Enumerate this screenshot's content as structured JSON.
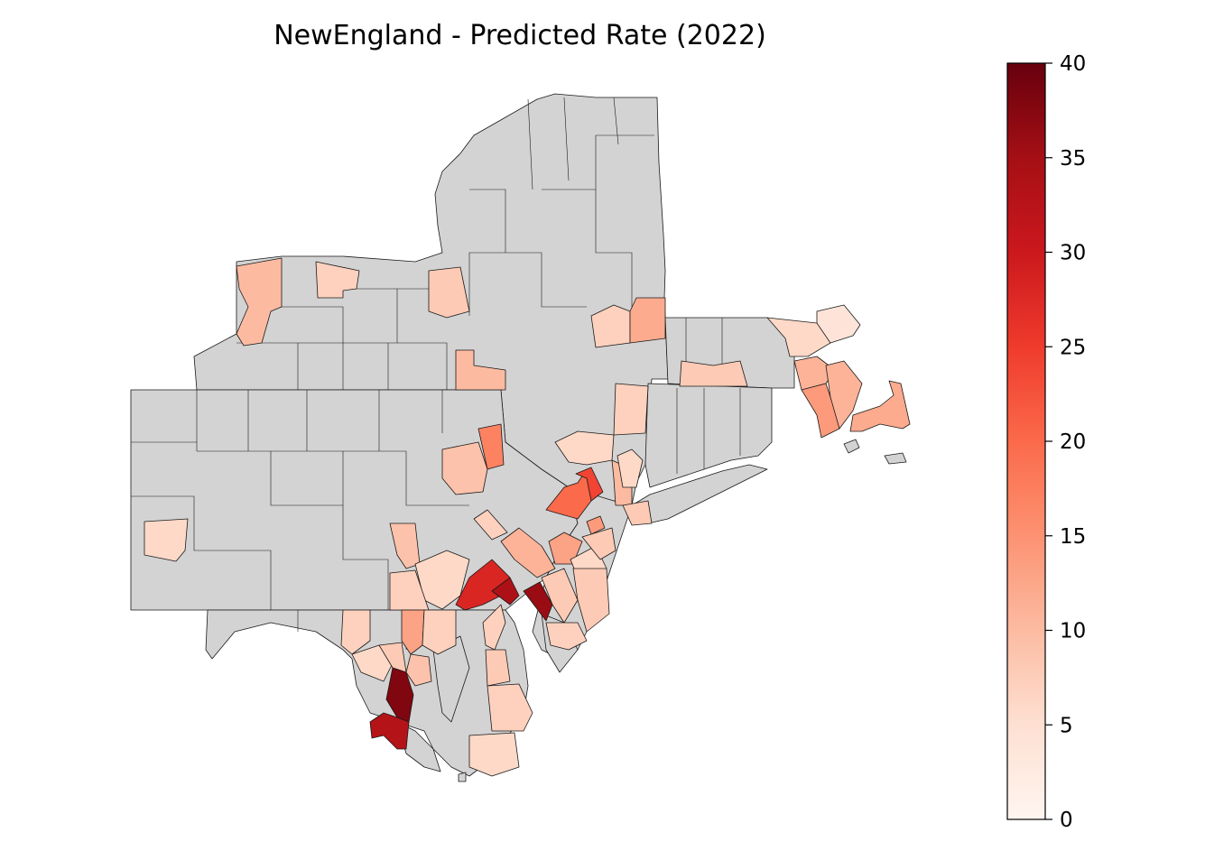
{
  "title": "NewEngland - Predicted Rate (2022)",
  "colors": {
    "no_data": "#d3d3d3",
    "scale": [
      "#fff5f0",
      "#fee0d2",
      "#fcbba1",
      "#fc9272",
      "#fb6a4a",
      "#ef3b2c",
      "#cb181d",
      "#a50f15",
      "#67000d"
    ]
  },
  "colorbar": {
    "min": 0,
    "max": 40,
    "ticks": [
      "0",
      "5",
      "10",
      "15",
      "20",
      "25",
      "30",
      "35",
      "40"
    ]
  },
  "regions_rendered": [
    {
      "id": "ny-erie",
      "value": 10
    },
    {
      "id": "ny-monroe",
      "value": 7
    },
    {
      "id": "ny-onondaga",
      "value": 8
    },
    {
      "id": "ny-broome",
      "value": 10
    },
    {
      "id": "ny-schenectady",
      "value": 7
    },
    {
      "id": "ny-rensselaer",
      "value": 12
    },
    {
      "id": "ny-dutchess",
      "value": 7
    },
    {
      "id": "ma-north",
      "value": 4
    },
    {
      "id": "ma-essex",
      "value": 6
    },
    {
      "id": "ma-worcester",
      "value": 8
    },
    {
      "id": "ma-middlesex",
      "value": 11
    },
    {
      "id": "ma-norfolk",
      "value": 14
    },
    {
      "id": "ma-plymouth",
      "value": 11
    },
    {
      "id": "ma-barnstable",
      "value": 12
    },
    {
      "id": "pa-lackawanna",
      "value": 17
    },
    {
      "id": "pa-luzerne",
      "value": 9
    },
    {
      "id": "pa-monroe",
      "value": 6
    },
    {
      "id": "nj-passaic",
      "value": 20
    },
    {
      "id": "nj-bergen",
      "value": 24
    },
    {
      "id": "nj-essex",
      "value": 10
    },
    {
      "id": "nj-union",
      "value": 14
    },
    {
      "id": "ny-westchester",
      "value": 6
    },
    {
      "id": "ny-queens",
      "value": 8
    },
    {
      "id": "pa-cambria",
      "value": 6
    },
    {
      "id": "pa-berks",
      "value": 11
    },
    {
      "id": "pa-lehigh",
      "value": 7
    },
    {
      "id": "pa-bucks",
      "value": 13
    },
    {
      "id": "nj-mercer",
      "value": 6
    },
    {
      "id": "nj-monmouth",
      "value": 8
    },
    {
      "id": "pa-dauphin",
      "value": 9
    },
    {
      "id": "pa-lancaster",
      "value": 6
    },
    {
      "id": "pa-chester",
      "value": 28
    },
    {
      "id": "pa-delaware",
      "value": 34
    },
    {
      "id": "nj-camden",
      "value": 36
    },
    {
      "id": "nj-burlington",
      "value": 8
    },
    {
      "id": "nj-ocean",
      "value": 8
    },
    {
      "id": "nj-atlantic",
      "value": 7
    },
    {
      "id": "pa-york",
      "value": 7
    },
    {
      "id": "md-baltimore",
      "value": 13
    },
    {
      "id": "md-harford",
      "value": 7
    },
    {
      "id": "md-frederick",
      "value": 7
    },
    {
      "id": "md-montgomery",
      "value": 6
    },
    {
      "id": "md-howard",
      "value": 9
    },
    {
      "id": "md-anne-arundel",
      "value": 8
    },
    {
      "id": "de-new-castle",
      "value": 7
    },
    {
      "id": "de-kent",
      "value": 8
    },
    {
      "id": "de-sussex",
      "value": 7
    },
    {
      "id": "md-worcester",
      "value": 6
    },
    {
      "id": "dc",
      "value": 38
    },
    {
      "id": "md-prince-georges",
      "value": 33
    }
  ]
}
